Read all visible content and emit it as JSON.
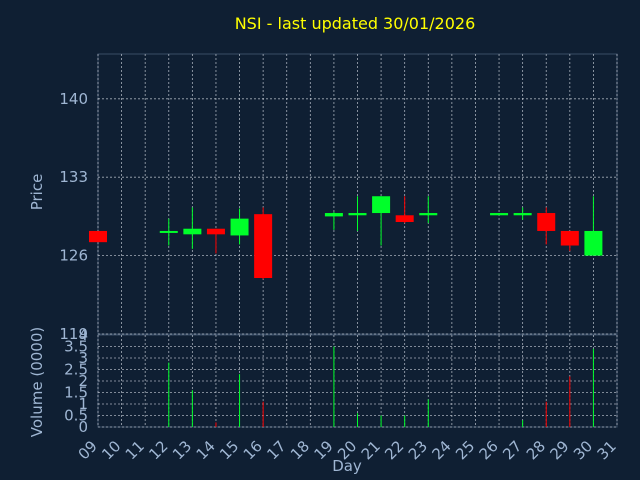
{
  "chart_data": [
    {
      "type": "candlestick",
      "title": "NSI - last updated 30/01/2026",
      "ylabel": "Price",
      "xlabel": "Day",
      "ylim": [
        119,
        144
      ],
      "yticks": [
        119,
        126,
        133,
        140
      ],
      "grid": true,
      "x": [
        "09",
        "10",
        "11",
        "12",
        "13",
        "14",
        "15",
        "16",
        "17",
        "18",
        "19",
        "20",
        "21",
        "22",
        "23",
        "24",
        "25",
        "26",
        "27",
        "28",
        "29",
        "30",
        "31"
      ],
      "candles": [
        {
          "day": "09",
          "open": 128.2,
          "high": 128.2,
          "low": 127.2,
          "close": 127.2
        },
        {
          "day": "12",
          "open": 128.2,
          "high": 129.3,
          "low": 126.9,
          "close": 128.2
        },
        {
          "day": "13",
          "open": 127.9,
          "high": 130.3,
          "low": 126.6,
          "close": 128.4
        },
        {
          "day": "14",
          "open": 128.4,
          "high": 128.4,
          "low": 126.2,
          "close": 127.9
        },
        {
          "day": "15",
          "open": 127.8,
          "high": 130.2,
          "low": 127.0,
          "close": 129.3
        },
        {
          "day": "16",
          "open": 129.7,
          "high": 130.3,
          "low": 123.9,
          "close": 124.0
        },
        {
          "day": "19",
          "open": 129.5,
          "high": 129.9,
          "low": 128.3,
          "close": 129.8
        },
        {
          "day": "20",
          "open": 129.6,
          "high": 131.3,
          "low": 128.2,
          "close": 129.8
        },
        {
          "day": "21",
          "open": 129.8,
          "high": 131.3,
          "low": 126.9,
          "close": 131.3
        },
        {
          "day": "22",
          "open": 129.6,
          "high": 131.3,
          "low": 128.9,
          "close": 129.0
        },
        {
          "day": "23",
          "open": 129.6,
          "high": 131.3,
          "low": 128.9,
          "close": 129.8
        },
        {
          "day": "26",
          "open": 129.6,
          "high": 129.8,
          "low": 129.6,
          "close": 129.8
        },
        {
          "day": "27",
          "open": 129.6,
          "high": 130.3,
          "low": 129.2,
          "close": 129.8
        },
        {
          "day": "28",
          "open": 129.8,
          "high": 130.3,
          "low": 127.0,
          "close": 128.2
        },
        {
          "day": "29",
          "open": 128.2,
          "high": 128.2,
          "low": 126.4,
          "close": 126.9
        },
        {
          "day": "30",
          "open": 126.0,
          "high": 131.3,
          "low": 126.0,
          "close": 128.2
        }
      ]
    },
    {
      "type": "bar",
      "ylabel": "Volume (0000)",
      "ylim": [
        0,
        4
      ],
      "yticks": [
        0,
        0.5,
        1,
        1.5,
        2,
        2.5,
        3,
        3.5,
        4
      ],
      "values": [
        {
          "day": "09",
          "volume": 0.0,
          "direction": "down"
        },
        {
          "day": "12",
          "volume": 2.8,
          "direction": "up"
        },
        {
          "day": "13",
          "volume": 1.6,
          "direction": "up"
        },
        {
          "day": "14",
          "volume": 0.2,
          "direction": "down"
        },
        {
          "day": "15",
          "volume": 2.3,
          "direction": "up"
        },
        {
          "day": "16",
          "volume": 1.1,
          "direction": "down"
        },
        {
          "day": "19",
          "volume": 3.5,
          "direction": "up"
        },
        {
          "day": "20",
          "volume": 0.6,
          "direction": "up"
        },
        {
          "day": "21",
          "volume": 0.5,
          "direction": "up"
        },
        {
          "day": "22",
          "volume": 0.5,
          "direction": "up"
        },
        {
          "day": "23",
          "volume": 1.2,
          "direction": "up"
        },
        {
          "day": "26",
          "volume": 0.0,
          "direction": "up"
        },
        {
          "day": "27",
          "volume": 0.3,
          "direction": "up"
        },
        {
          "day": "28",
          "volume": 1.1,
          "direction": "down"
        },
        {
          "day": "29",
          "volume": 2.2,
          "direction": "down"
        },
        {
          "day": "30",
          "volume": 3.4,
          "direction": "up"
        }
      ]
    }
  ],
  "colors": {
    "background": "#0f1f33",
    "plot_background": "#0f1f33",
    "grid": "#d7dde6",
    "axis_text": "#9fb6d3",
    "title_text": "#ffff00",
    "up": "#00ff2a",
    "down": "#ff0000"
  }
}
